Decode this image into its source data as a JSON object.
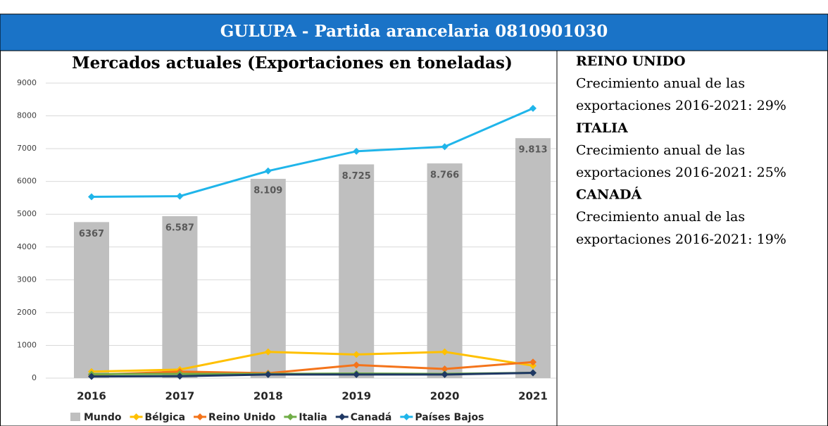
{
  "header": {
    "title": "GULUPA - Partida arancelaria 0810901030"
  },
  "chart_data": {
    "type": "bar-line",
    "title": "Mercados actuales (Exportaciones en toneladas)",
    "categories": [
      "2016",
      "2017",
      "2018",
      "2019",
      "2020",
      "2021"
    ],
    "ylim": [
      0,
      9000
    ],
    "yticks": [
      0,
      1000,
      2000,
      3000,
      4000,
      5000,
      6000,
      7000,
      8000,
      9000
    ],
    "grid": true,
    "series": [
      {
        "name": "Mundo",
        "kind": "bar",
        "color": "#bfbfbf",
        "values": [
          4760,
          4940,
          6080,
          6520,
          6550,
          7320
        ]
      },
      {
        "name": "Bélgica",
        "kind": "line",
        "color": "#ffc000",
        "values": [
          200,
          260,
          800,
          720,
          800,
          380
        ]
      },
      {
        "name": "Reino Unido",
        "kind": "line",
        "color": "#f4741b",
        "values": [
          100,
          200,
          150,
          400,
          280,
          490
        ]
      },
      {
        "name": "Italia",
        "kind": "line",
        "color": "#70ad47",
        "values": [
          120,
          130,
          130,
          140,
          130,
          160
        ]
      },
      {
        "name": "Canadá",
        "kind": "line",
        "color": "#1f3864",
        "values": [
          50,
          60,
          110,
          110,
          110,
          160
        ]
      },
      {
        "name": "Países Bajos",
        "kind": "line",
        "color": "#1fb5ea",
        "values": [
          5530,
          5550,
          6320,
          6920,
          7060,
          8230
        ]
      }
    ],
    "annotations": [
      "6367",
      "6.587",
      "8.109",
      "8.725",
      "8.766",
      "9.813"
    ]
  },
  "markets": [
    {
      "name": "REINO UNIDO",
      "lines": [
        "Crecimiento anual de las",
        "exportaciones 2016-2021: 29%"
      ]
    },
    {
      "name": "ITALIA",
      "lines": [
        "Crecimiento anual de las",
        "exportaciones 2016-2021: 25%"
      ]
    },
    {
      "name": "CANADÁ",
      "lines": [
        "Crecimiento anual de las",
        "exportaciones 2016-2021: 19%"
      ]
    }
  ]
}
